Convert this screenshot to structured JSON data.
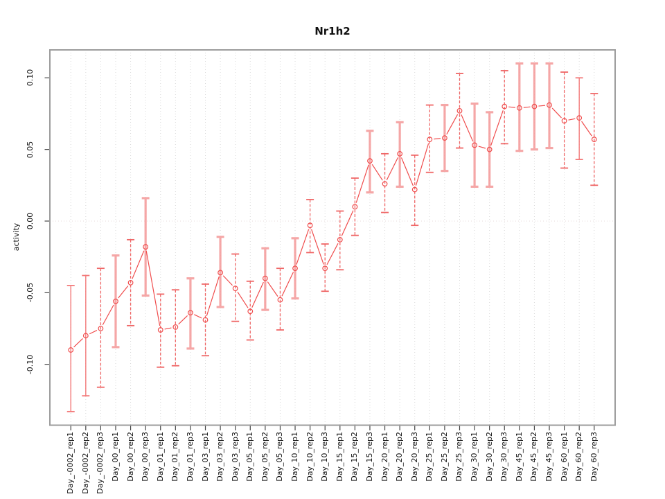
{
  "chart_data": {
    "type": "line",
    "title": "Nr1h2",
    "xlabel": "",
    "ylabel": "activity",
    "legend": "none",
    "grid": "dotted vertical gridline at every category; dotted horizontal line at y=0",
    "ylim": [
      -0.1425,
      0.1195
    ],
    "yticks": [
      {
        "value": -0.1,
        "label": "-0.10"
      },
      {
        "value": -0.05,
        "label": "-0.05"
      },
      {
        "value": 0.0,
        "label": "0.00"
      },
      {
        "value": 0.05,
        "label": "0.05"
      },
      {
        "value": 0.1,
        "label": "0.10"
      }
    ],
    "categories": [
      "Day_-0002_rep1",
      "Day_-0002_rep2",
      "Day_-0002_rep3",
      "Day_00_rep1",
      "Day_00_rep2",
      "Day_00_rep3",
      "Day_01_rep1",
      "Day_01_rep2",
      "Day_01_rep3",
      "Day_03_rep1",
      "Day_03_rep2",
      "Day_03_rep3",
      "Day_05_rep1",
      "Day_05_rep2",
      "Day_05_rep3",
      "Day_10_rep1",
      "Day_10_rep2",
      "Day_10_rep3",
      "Day_15_rep1",
      "Day_15_rep2",
      "Day_15_rep3",
      "Day_20_rep1",
      "Day_20_rep2",
      "Day_20_rep3",
      "Day_25_rep1",
      "Day_25_rep2",
      "Day_25_rep3",
      "Day_30_rep1",
      "Day_30_rep2",
      "Day_30_rep3",
      "Day_45_rep1",
      "Day_45_rep2",
      "Day_45_rep3",
      "Day_60_rep1",
      "Day_60_rep2",
      "Day_60_rep3"
    ],
    "series": [
      {
        "name": "activity",
        "marker": "open-circle",
        "points": [
          {
            "label": "Day_-0002_rep1",
            "value": -0.09,
            "lower": -0.133,
            "upper": -0.045,
            "bar_style": "solid"
          },
          {
            "label": "Day_-0002_rep2",
            "value": -0.08,
            "lower": -0.122,
            "upper": -0.038,
            "bar_style": "solid"
          },
          {
            "label": "Day_-0002_rep3",
            "value": -0.075,
            "lower": -0.116,
            "upper": -0.033,
            "bar_style": "dashed"
          },
          {
            "label": "Day_00_rep1",
            "value": -0.056,
            "lower": -0.088,
            "upper": -0.024,
            "bar_style": "thick"
          },
          {
            "label": "Day_00_rep2",
            "value": -0.043,
            "lower": -0.073,
            "upper": -0.013,
            "bar_style": "dashed"
          },
          {
            "label": "Day_00_rep3",
            "value": -0.018,
            "lower": -0.052,
            "upper": 0.016,
            "bar_style": "thick"
          },
          {
            "label": "Day_01_rep1",
            "value": -0.076,
            "lower": -0.102,
            "upper": -0.051,
            "bar_style": "dashed"
          },
          {
            "label": "Day_01_rep2",
            "value": -0.074,
            "lower": -0.101,
            "upper": -0.048,
            "bar_style": "dashed"
          },
          {
            "label": "Day_01_rep3",
            "value": -0.064,
            "lower": -0.089,
            "upper": -0.04,
            "bar_style": "thick"
          },
          {
            "label": "Day_03_rep1",
            "value": -0.069,
            "lower": -0.094,
            "upper": -0.044,
            "bar_style": "dashed"
          },
          {
            "label": "Day_03_rep2",
            "value": -0.036,
            "lower": -0.06,
            "upper": -0.011,
            "bar_style": "thick"
          },
          {
            "label": "Day_03_rep3",
            "value": -0.047,
            "lower": -0.07,
            "upper": -0.023,
            "bar_style": "dashed"
          },
          {
            "label": "Day_05_rep1",
            "value": -0.063,
            "lower": -0.083,
            "upper": -0.042,
            "bar_style": "dashed"
          },
          {
            "label": "Day_05_rep2",
            "value": -0.04,
            "lower": -0.062,
            "upper": -0.019,
            "bar_style": "thick"
          },
          {
            "label": "Day_05_rep3",
            "value": -0.055,
            "lower": -0.076,
            "upper": -0.033,
            "bar_style": "dashed"
          },
          {
            "label": "Day_10_rep1",
            "value": -0.033,
            "lower": -0.054,
            "upper": -0.012,
            "bar_style": "thick"
          },
          {
            "label": "Day_10_rep2",
            "value": -0.003,
            "lower": -0.022,
            "upper": 0.015,
            "bar_style": "dashed"
          },
          {
            "label": "Day_10_rep3",
            "value": -0.033,
            "lower": -0.049,
            "upper": -0.016,
            "bar_style": "dashed"
          },
          {
            "label": "Day_15_rep1",
            "value": -0.013,
            "lower": -0.034,
            "upper": 0.007,
            "bar_style": "dashed"
          },
          {
            "label": "Day_15_rep2",
            "value": 0.01,
            "lower": -0.01,
            "upper": 0.03,
            "bar_style": "dashed"
          },
          {
            "label": "Day_15_rep3",
            "value": 0.042,
            "lower": 0.02,
            "upper": 0.063,
            "bar_style": "thick"
          },
          {
            "label": "Day_20_rep1",
            "value": 0.026,
            "lower": 0.006,
            "upper": 0.047,
            "bar_style": "dashed"
          },
          {
            "label": "Day_20_rep2",
            "value": 0.047,
            "lower": 0.024,
            "upper": 0.069,
            "bar_style": "thick"
          },
          {
            "label": "Day_20_rep3",
            "value": 0.022,
            "lower": -0.003,
            "upper": 0.046,
            "bar_style": "dashed"
          },
          {
            "label": "Day_25_rep1",
            "value": 0.057,
            "lower": 0.034,
            "upper": 0.081,
            "bar_style": "dashed"
          },
          {
            "label": "Day_25_rep2",
            "value": 0.058,
            "lower": 0.035,
            "upper": 0.081,
            "bar_style": "thick"
          },
          {
            "label": "Day_25_rep3",
            "value": 0.077,
            "lower": 0.051,
            "upper": 0.103,
            "bar_style": "dashed"
          },
          {
            "label": "Day_30_rep1",
            "value": 0.053,
            "lower": 0.024,
            "upper": 0.082,
            "bar_style": "thick"
          },
          {
            "label": "Day_30_rep2",
            "value": 0.05,
            "lower": 0.024,
            "upper": 0.076,
            "bar_style": "thick"
          },
          {
            "label": "Day_30_rep3",
            "value": 0.08,
            "lower": 0.054,
            "upper": 0.105,
            "bar_style": "dashed"
          },
          {
            "label": "Day_45_rep1",
            "value": 0.079,
            "lower": 0.049,
            "upper": 0.11,
            "bar_style": "thick"
          },
          {
            "label": "Day_45_rep2",
            "value": 0.08,
            "lower": 0.05,
            "upper": 0.11,
            "bar_style": "thick"
          },
          {
            "label": "Day_45_rep3",
            "value": 0.081,
            "lower": 0.051,
            "upper": 0.11,
            "bar_style": "thick"
          },
          {
            "label": "Day_60_rep1",
            "value": 0.07,
            "lower": 0.037,
            "upper": 0.104,
            "bar_style": "dashed"
          },
          {
            "label": "Day_60_rep2",
            "value": 0.072,
            "lower": 0.043,
            "upper": 0.1,
            "bar_style": "solid"
          },
          {
            "label": "Day_60_rep3",
            "value": 0.057,
            "lower": 0.025,
            "upper": 0.089,
            "bar_style": "dashed"
          }
        ]
      }
    ],
    "colors": {
      "point_and_line": "#f04c4c",
      "error_bar_solid": "#f26b6b",
      "error_bar_dashed": "#ef5e5e",
      "error_bar_thick": "#f59e9e",
      "gridline": "#d8d8d8",
      "zero_line": "#e7dada",
      "plot_border": "#9c9c9c",
      "tick": "#444444",
      "text": "#111111"
    }
  }
}
